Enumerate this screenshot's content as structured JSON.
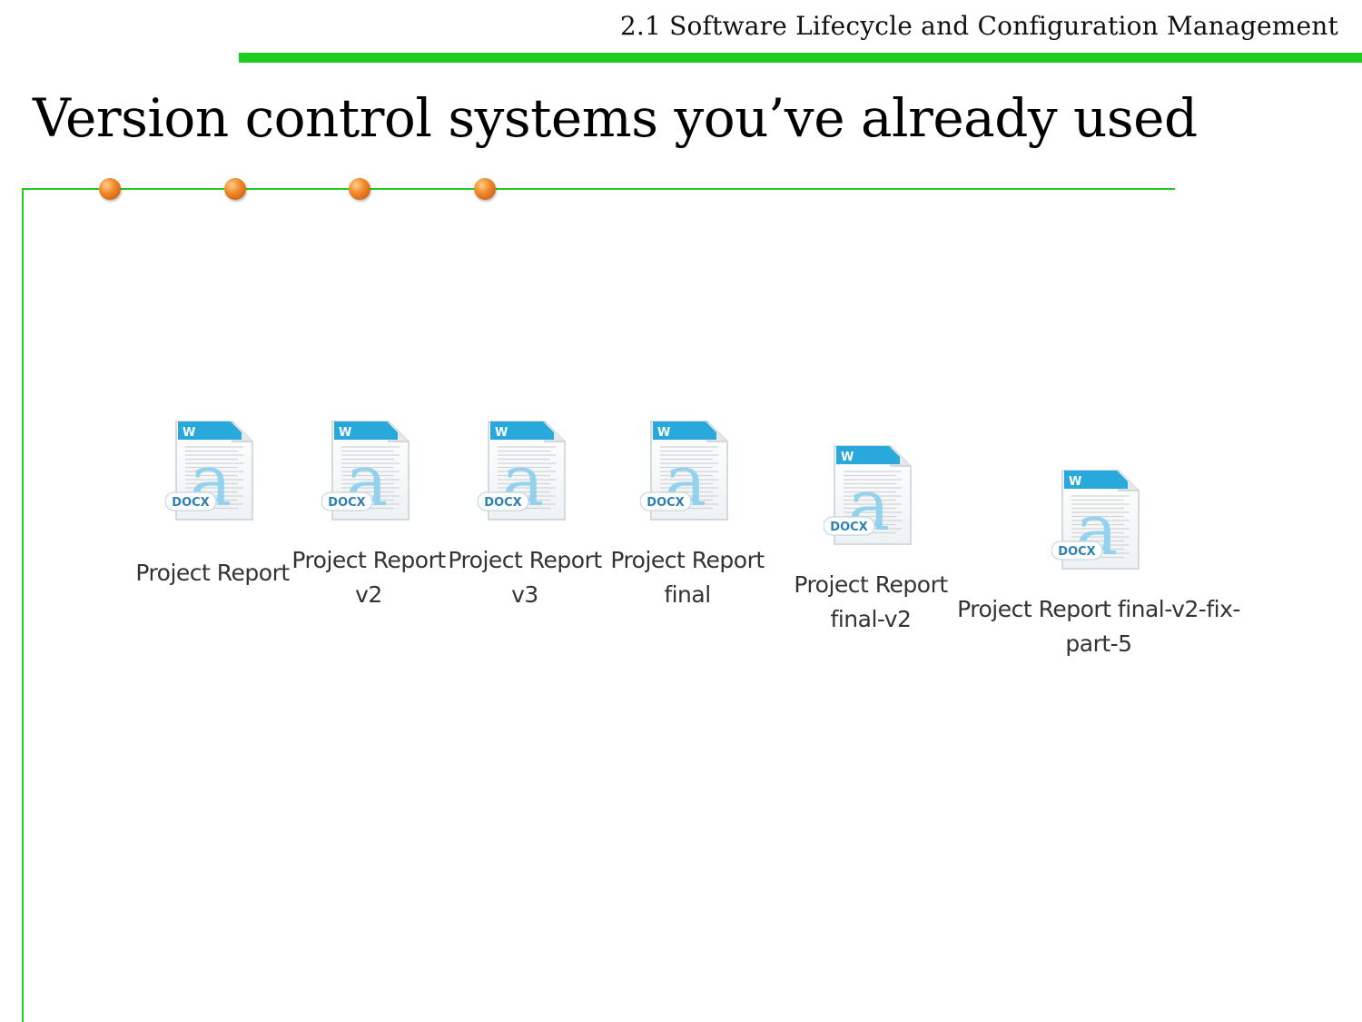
{
  "header": {
    "section_title": "2.1 Software Lifecycle and Configuration Management"
  },
  "slide": {
    "title": "Version control systems you’ve already used"
  },
  "colors": {
    "accent_green": "#1fcc1f",
    "dot_orange": "#f08a2a",
    "icon_blue": "#29a8dc"
  },
  "files": [
    {
      "name": "Project Report",
      "type_badge": "DOCX",
      "app_badge": "W",
      "icon": "word-docx-file-icon"
    },
    {
      "name": "Project Report\nv2",
      "type_badge": "DOCX",
      "app_badge": "W",
      "icon": "word-docx-file-icon"
    },
    {
      "name": "Project Report\nv3",
      "type_badge": "DOCX",
      "app_badge": "W",
      "icon": "word-docx-file-icon"
    },
    {
      "name": "Project Report\nfinal",
      "type_badge": "DOCX",
      "app_badge": "W",
      "icon": "word-docx-file-icon"
    },
    {
      "name": "Project Report\nfinal-v2",
      "type_badge": "DOCX",
      "app_badge": "W",
      "icon": "word-docx-file-icon"
    },
    {
      "name": "Project Report final-v2-fix-\npart-5",
      "type_badge": "DOCX",
      "app_badge": "W",
      "icon": "word-docx-file-icon"
    }
  ]
}
